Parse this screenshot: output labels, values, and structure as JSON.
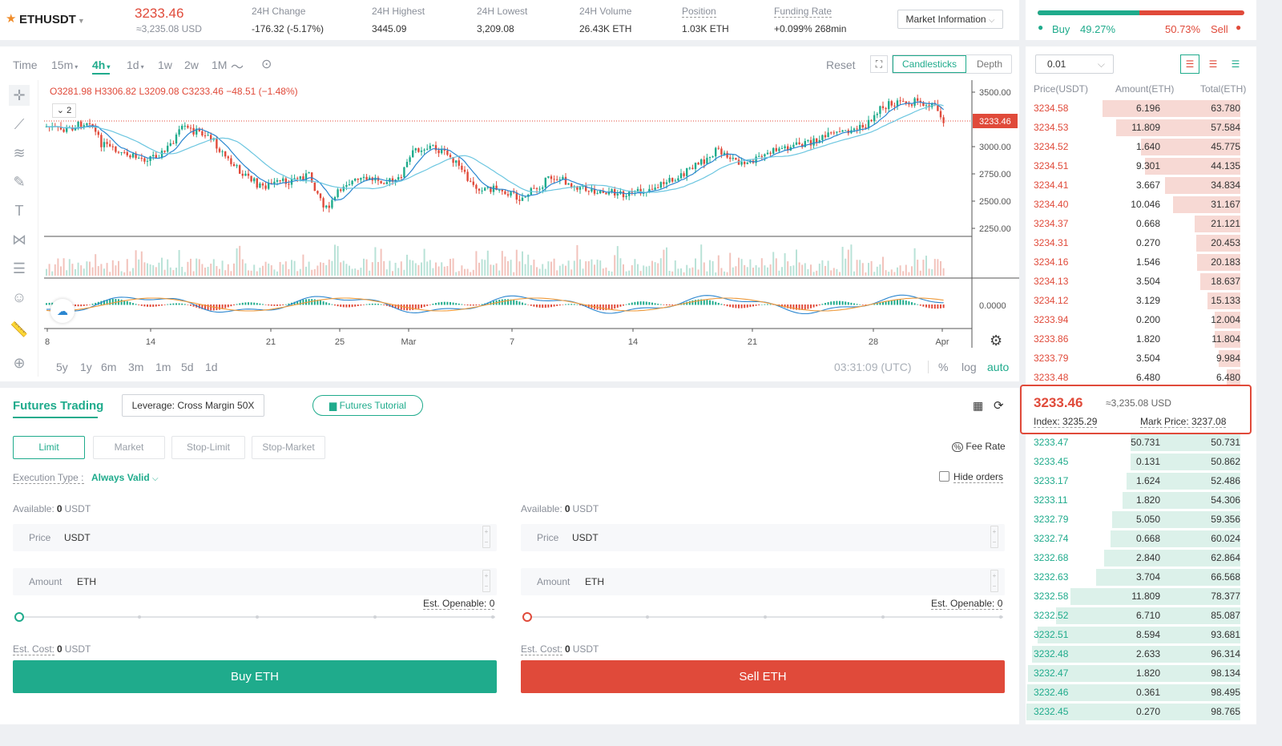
{
  "header": {
    "symbol": "ETHUSDT",
    "last_price": "3233.46",
    "last_price_usd": "≈3,235.08 USD",
    "stats": [
      {
        "label": "24H Change",
        "value": "-176.32 (-5.17%)",
        "tone": "red"
      },
      {
        "label": "24H Highest",
        "value": "3445.09",
        "tone": "plain"
      },
      {
        "label": "24H Lowest",
        "value": "3,209.08",
        "tone": "plain"
      },
      {
        "label": "24H Volume",
        "value": "26.43K ETH",
        "tone": "plain"
      },
      {
        "label": "Position",
        "value": "1.03K ETH",
        "tone": "plain"
      },
      {
        "label": "Funding Rate",
        "value": "+0.099% 268min",
        "tone": "plain"
      }
    ],
    "market_info_label": "Market Information"
  },
  "sentiment": {
    "buy_label": "Buy",
    "buy_pct": "49.27%",
    "sell_pct": "50.73%",
    "sell_label": "Sell",
    "buy_ratio": 0.4927
  },
  "chart_toolbar": {
    "intervals": [
      "Time",
      "15m",
      "4h",
      "1d",
      "1w",
      "2w",
      "1M"
    ],
    "active_interval": "4h",
    "reset": "Reset",
    "candlesticks": "Candlesticks",
    "depth": "Depth"
  },
  "chart": {
    "ohlc": {
      "open": "O3281.98",
      "high": "H3306.82",
      "low": "L3209.08",
      "close": "C3233.46",
      "change": "−48.51 (−1.48%)"
    },
    "indicator_count": "2",
    "price_ticks": [
      "3500.00",
      "3000.00",
      "2750.00",
      "2500.00",
      "2250.00"
    ],
    "price_tag": "3233.46",
    "macd_tick": "0.0000",
    "x_ticks": [
      "8",
      "14",
      "21",
      "25",
      "Mar",
      "7",
      "14",
      "21",
      "28",
      "Apr"
    ],
    "ranges": [
      "5y",
      "1y",
      "6m",
      "3m",
      "1m",
      "5d",
      "1d"
    ],
    "time": "03:31:09 (UTC)",
    "scale_opts": [
      "%",
      "log",
      "auto"
    ]
  },
  "trading": {
    "title": "Futures Trading",
    "leverage": "Leverage: Cross Margin 50X",
    "tutorial": "Futures Tutorial",
    "order_tabs": [
      "Limit",
      "Market",
      "Stop-Limit",
      "Stop-Market"
    ],
    "fee_rate": "Fee Rate",
    "exec_label": "Execution Type :",
    "exec_value": "Always Valid",
    "hide_orders": "Hide orders",
    "buy": {
      "available_label": "Available:",
      "available_value": "0",
      "available_unit": "USDT",
      "price_label": "Price",
      "price_unit": "USDT",
      "amount_label": "Amount",
      "amount_unit": "ETH",
      "openable": "Est. Openable: 0",
      "cost_label": "Est. Cost:",
      "cost_value": "0",
      "cost_unit": "USDT",
      "button": "Buy ETH"
    },
    "sell": {
      "available_label": "Available:",
      "available_value": "0",
      "available_unit": "USDT",
      "price_label": "Price",
      "price_unit": "USDT",
      "amount_label": "Amount",
      "amount_unit": "ETH",
      "openable": "Est. Openable: 0",
      "cost_label": "Est. Cost:",
      "cost_value": "0",
      "cost_unit": "USDT",
      "button": "Sell ETH"
    }
  },
  "orderbook": {
    "precision": "0.01",
    "headers": [
      "Price(USDT)",
      "Amount(ETH)",
      "Total(ETH)"
    ],
    "asks": [
      [
        "3234.58",
        "6.196",
        "63.780"
      ],
      [
        "3234.53",
        "11.809",
        "57.584"
      ],
      [
        "3234.52",
        "1.640",
        "45.775"
      ],
      [
        "3234.51",
        "9.301",
        "44.135"
      ],
      [
        "3234.41",
        "3.667",
        "34.834"
      ],
      [
        "3234.40",
        "10.046",
        "31.167"
      ],
      [
        "3234.37",
        "0.668",
        "21.121"
      ],
      [
        "3234.31",
        "0.270",
        "20.453"
      ],
      [
        "3234.16",
        "1.546",
        "20.183"
      ],
      [
        "3234.13",
        "3.504",
        "18.637"
      ],
      [
        "3234.12",
        "3.129",
        "15.133"
      ],
      [
        "3233.94",
        "0.200",
        "12.004"
      ],
      [
        "3233.86",
        "1.820",
        "11.804"
      ],
      [
        "3233.79",
        "3.504",
        "9.984"
      ],
      [
        "3233.48",
        "6.480",
        "6.480"
      ]
    ],
    "mid": {
      "price": "3233.46",
      "usd": "≈3,235.08 USD",
      "index": "Index: 3235.29",
      "mark": "Mark Price: 3237.08"
    },
    "bids": [
      [
        "3233.47",
        "50.731",
        "50.731"
      ],
      [
        "3233.45",
        "0.131",
        "50.862"
      ],
      [
        "3233.17",
        "1.624",
        "52.486"
      ],
      [
        "3233.11",
        "1.820",
        "54.306"
      ],
      [
        "3232.79",
        "5.050",
        "59.356"
      ],
      [
        "3232.74",
        "0.668",
        "60.024"
      ],
      [
        "3232.68",
        "2.840",
        "62.864"
      ],
      [
        "3232.63",
        "3.704",
        "66.568"
      ],
      [
        "3232.58",
        "11.809",
        "78.377"
      ],
      [
        "3232.52",
        "6.710",
        "85.087"
      ],
      [
        "3232.51",
        "8.594",
        "93.681"
      ],
      [
        "3232.48",
        "2.633",
        "96.314"
      ],
      [
        "3232.47",
        "1.820",
        "98.134"
      ],
      [
        "3232.46",
        "0.361",
        "98.495"
      ],
      [
        "3232.45",
        "0.270",
        "98.765"
      ]
    ]
  },
  "colors": {
    "up": "#1fab8c",
    "down": "#e04a3a",
    "accent": "#1fab8c",
    "ma_short": "#2a86d0",
    "ma_long": "#6cc6e0",
    "macd_slow": "#f09a3a"
  },
  "icons": [
    "star-icon",
    "crosshair-icon",
    "trendline-icon",
    "fib-icon",
    "brush-icon",
    "text-icon",
    "pattern-icon",
    "measure-icon",
    "emoji-icon",
    "ruler-icon",
    "zoom-in-icon",
    "fullscreen-icon",
    "settings-icon",
    "grid-icon",
    "refresh-icon",
    "book-icon",
    "percent-icon"
  ]
}
